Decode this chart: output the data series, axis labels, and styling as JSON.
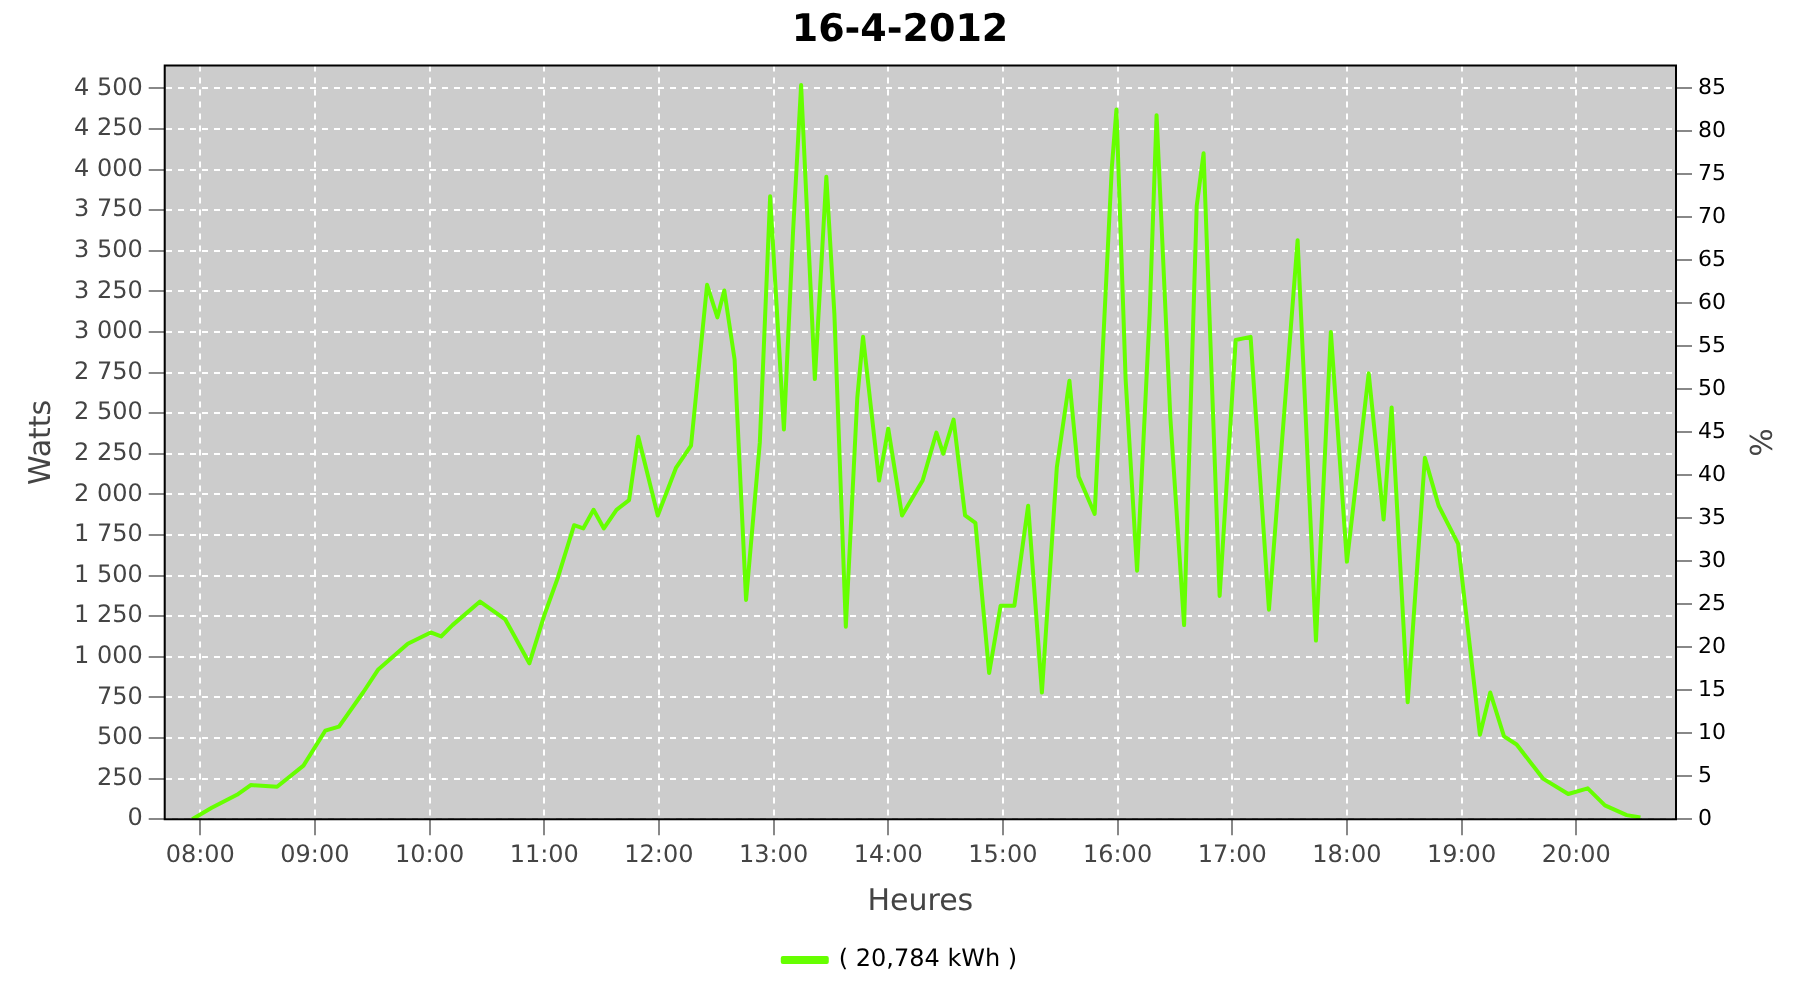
{
  "chart_data": {
    "type": "line",
    "title": "16-4-2012",
    "xlabel": "Heures",
    "ylabel": "Watts",
    "y2label": "%",
    "xlim": [
      7.69,
      20.87
    ],
    "xticks": [
      {
        "value": 8,
        "label": "08:00"
      },
      {
        "value": 9,
        "label": "09:00"
      },
      {
        "value": 10,
        "label": "10:00"
      },
      {
        "value": 11,
        "label": "11:00"
      },
      {
        "value": 12,
        "label": "12:00"
      },
      {
        "value": 13,
        "label": "13:00"
      },
      {
        "value": 14,
        "label": "14:00"
      },
      {
        "value": 15,
        "label": "15:00"
      },
      {
        "value": 16,
        "label": "16:00"
      },
      {
        "value": 17,
        "label": "17:00"
      },
      {
        "value": 18,
        "label": "18:00"
      },
      {
        "value": 19,
        "label": "19:00"
      },
      {
        "value": 20,
        "label": "20:00"
      }
    ],
    "ylim": [
      0,
      4640
    ],
    "yticks": [
      0,
      250,
      500,
      750,
      {
        "value": 1000,
        "label": "1 000"
      },
      {
        "value": 1250,
        "label": "1 250"
      },
      {
        "value": 1500,
        "label": "1 500"
      },
      {
        "value": 1750,
        "label": "1 750"
      },
      {
        "value": 2000,
        "label": "2 000"
      },
      {
        "value": 2250,
        "label": "2 250"
      },
      {
        "value": 2500,
        "label": "2 500"
      },
      {
        "value": 2750,
        "label": "2 750"
      },
      {
        "value": 3000,
        "label": "3 000"
      },
      {
        "value": 3250,
        "label": "3 250"
      },
      {
        "value": 3500,
        "label": "3 500"
      },
      {
        "value": 3750,
        "label": "3 750"
      },
      {
        "value": 4000,
        "label": "4 000"
      },
      {
        "value": 4250,
        "label": "4 250"
      },
      {
        "value": 4500,
        "label": "4 500"
      }
    ],
    "y2lim": [
      0,
      87.6
    ],
    "y2ticks": [
      0,
      5,
      10,
      15,
      20,
      25,
      30,
      35,
      40,
      45,
      50,
      55,
      60,
      65,
      70,
      75,
      80,
      85
    ],
    "grid": true,
    "legend": "bottom",
    "marker": "none",
    "line_style": "solid",
    "series": [
      {
        "name": "( 20,784 kWh )",
        "color": "#66ff00",
        "x": [
          7.93,
          8.1,
          8.32,
          8.44,
          8.67,
          8.9,
          9.09,
          9.21,
          9.42,
          9.55,
          9.81,
          10.01,
          10.1,
          10.2,
          10.44,
          10.66,
          10.87,
          11.0,
          11.12,
          11.26,
          11.34,
          11.43,
          11.52,
          11.63,
          11.74,
          11.82,
          11.99,
          12.15,
          12.28,
          12.42,
          12.51,
          12.57,
          12.66,
          12.76,
          12.88,
          12.97,
          13.09,
          13.17,
          13.24,
          13.36,
          13.46,
          13.53,
          13.63,
          13.73,
          13.78,
          13.92,
          14.0,
          14.12,
          14.3,
          14.42,
          14.48,
          14.57,
          14.67,
          14.76,
          14.88,
          14.98,
          15.1,
          15.22,
          15.34,
          15.47,
          15.58,
          15.66,
          15.8,
          15.95,
          15.99,
          16.07,
          16.17,
          16.28,
          16.34,
          16.46,
          16.58,
          16.69,
          16.75,
          16.89,
          17.03,
          17.16,
          17.32,
          17.57,
          17.73,
          17.86,
          18.0,
          18.19,
          18.32,
          18.39,
          18.53,
          18.68,
          18.8,
          18.97,
          19.16,
          19.25,
          19.37,
          19.48,
          19.71,
          19.93,
          20.1,
          20.25,
          20.44,
          20.56
        ],
        "values": [
          0,
          70,
          150,
          210,
          200,
          330,
          545,
          570,
          780,
          920,
          1080,
          1150,
          1125,
          1195,
          1340,
          1230,
          960,
          1255,
          1490,
          1810,
          1790,
          1905,
          1790,
          1905,
          1965,
          2355,
          1870,
          2165,
          2300,
          3290,
          3090,
          3255,
          2830,
          1350,
          2320,
          3835,
          2400,
          3620,
          4520,
          2710,
          3955,
          3115,
          1185,
          2595,
          2970,
          2085,
          2405,
          1870,
          2085,
          2380,
          2250,
          2460,
          1870,
          1825,
          900,
          1315,
          1315,
          1930,
          780,
          2165,
          2700,
          2110,
          1880,
          4015,
          4370,
          2710,
          1530,
          3115,
          4335,
          2475,
          1195,
          3775,
          4100,
          1375,
          2950,
          2970,
          1290,
          3565,
          1100,
          3000,
          1585,
          2745,
          1845,
          2535,
          720,
          2225,
          1930,
          1695,
          520,
          780,
          510,
          460,
          250,
          155,
          190,
          85,
          25,
          10
        ]
      }
    ]
  }
}
